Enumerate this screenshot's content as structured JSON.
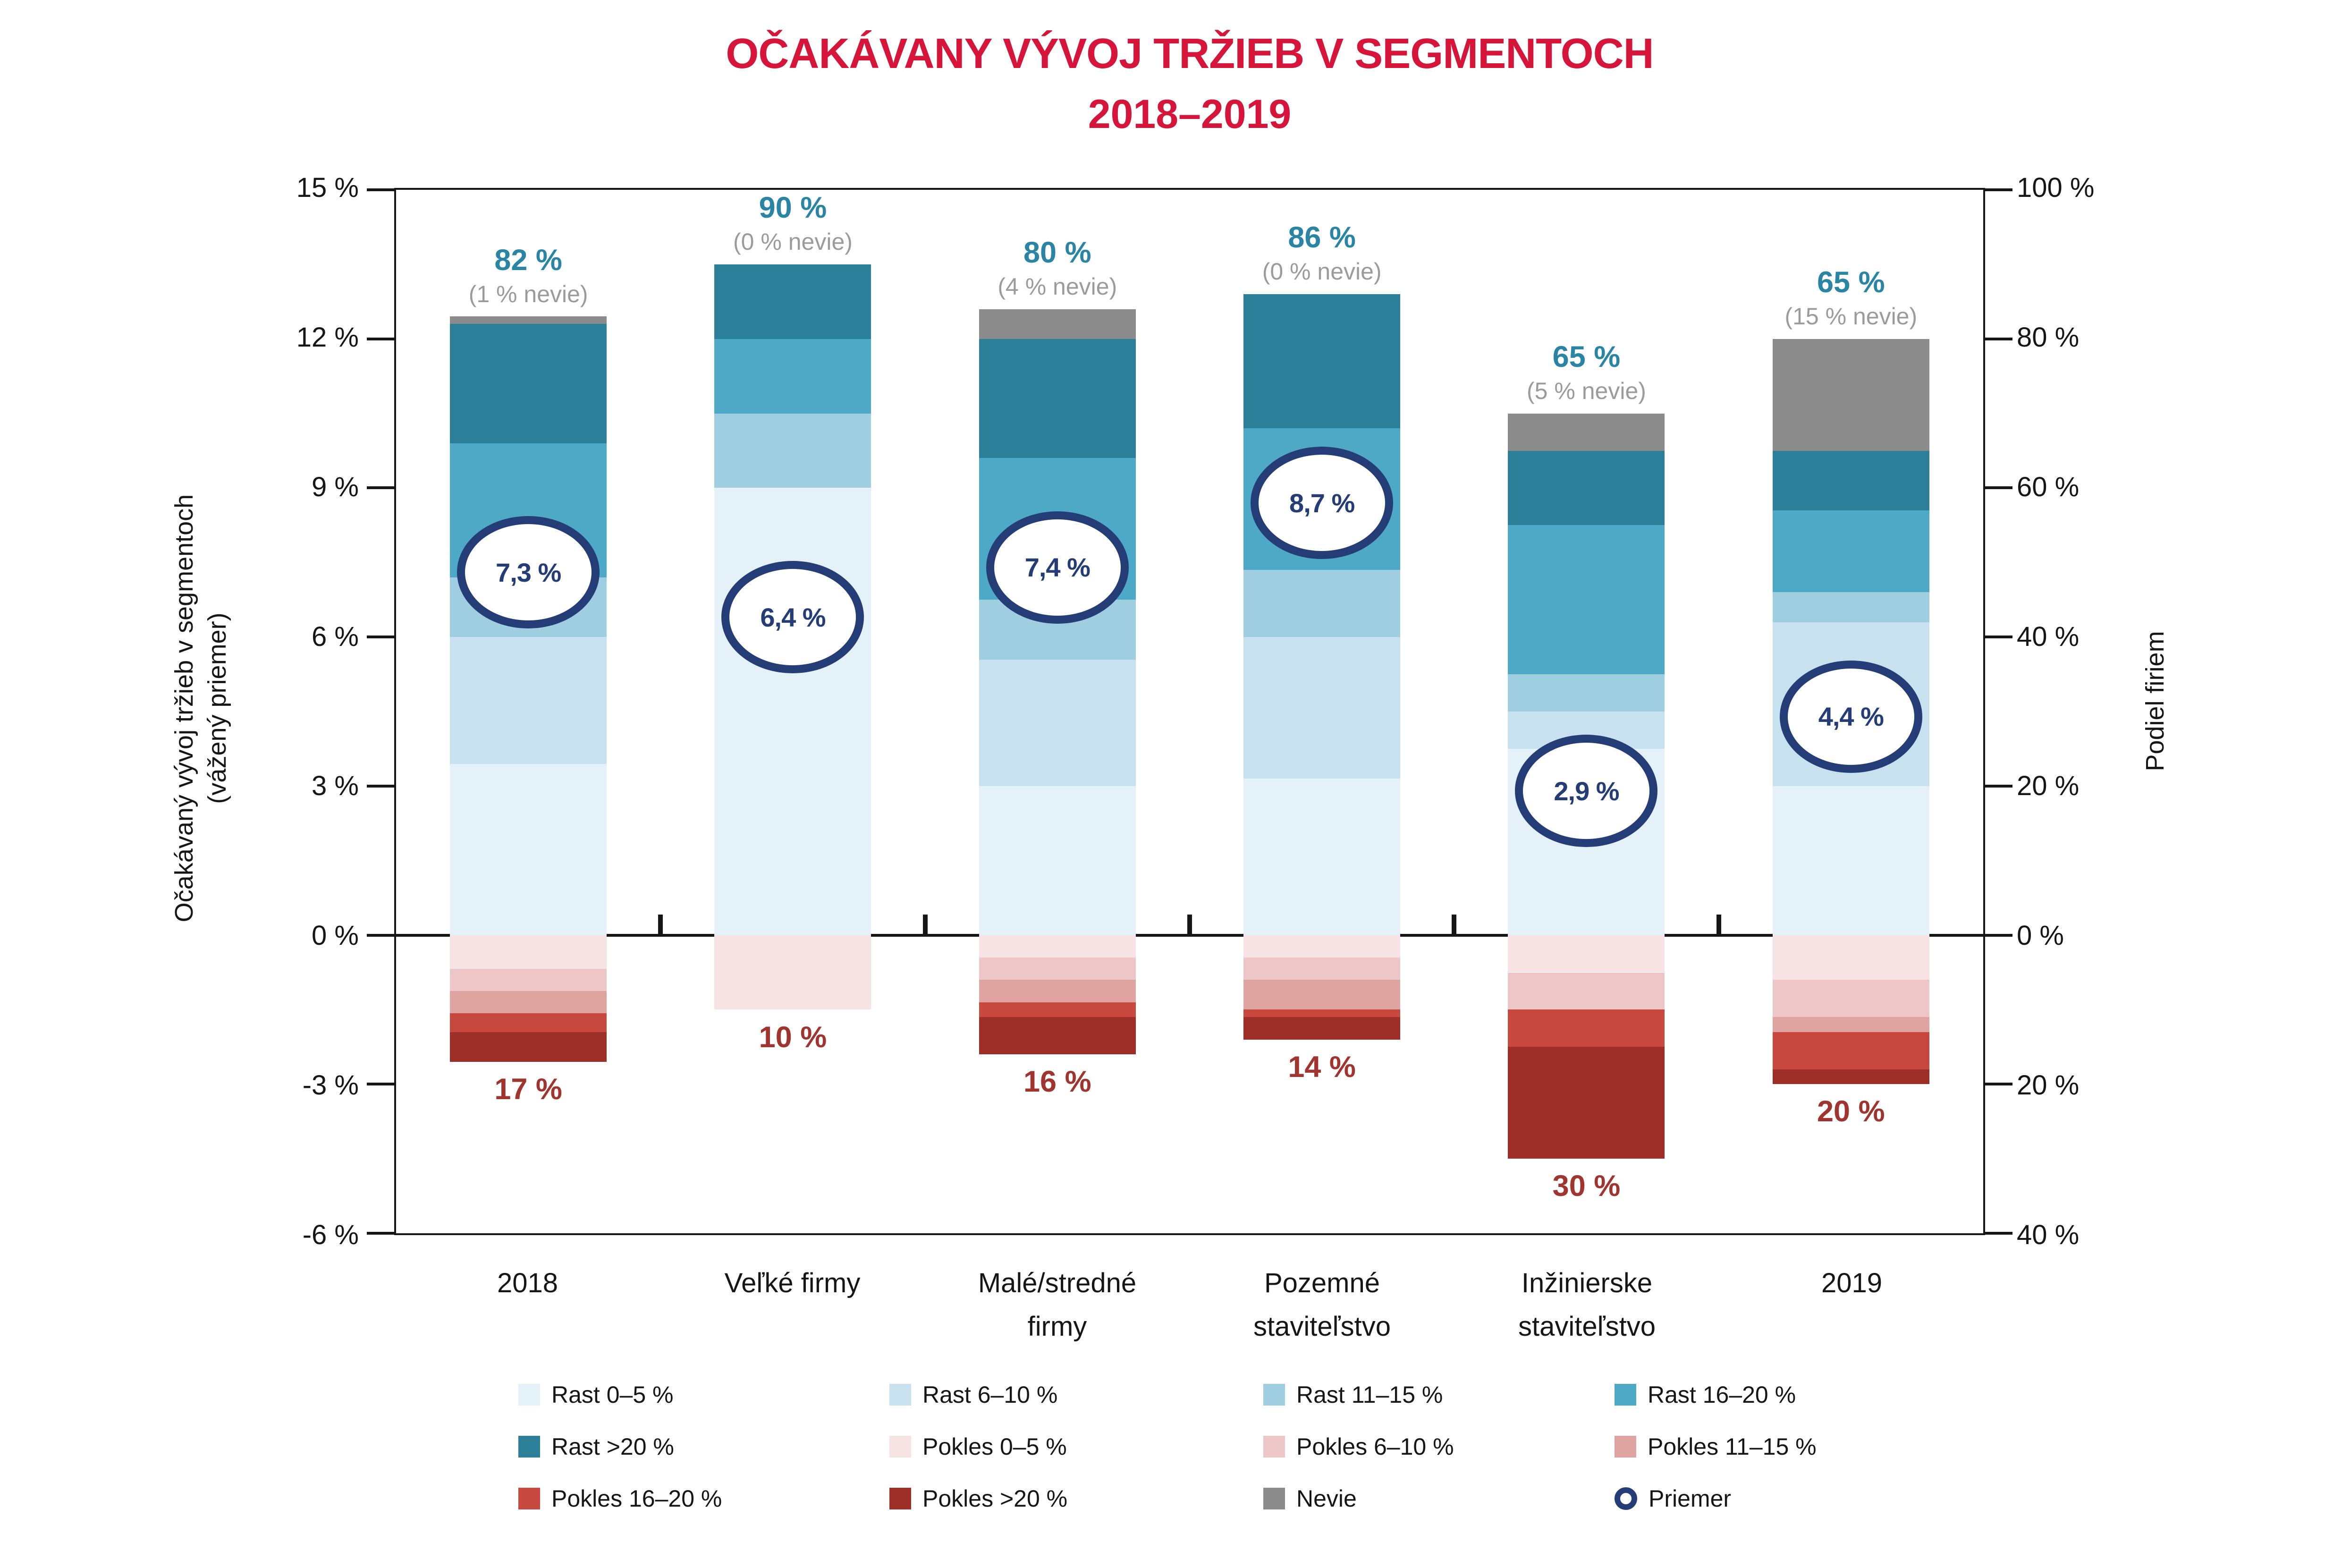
{
  "title": {
    "line1": "OČAKÁVANY VÝVOJ TRŽIEB V SEGMENTOCH",
    "line2": "2018–2019"
  },
  "axes": {
    "left_title_line1": "Očakávaný vývoj tržieb v segmentoch",
    "left_title_line2": "(vážený priemer)",
    "right_title": "Podiel firiem",
    "left_ticks": [
      "15 %",
      "12 %",
      "9 %",
      "6 %",
      "3 %",
      "0 %",
      "-3 %",
      "-6 %"
    ],
    "right_ticks": [
      "100 %",
      "80 %",
      "60 %",
      "40 %",
      "20 %",
      "0 %",
      "20 %",
      "40 %"
    ]
  },
  "colors": {
    "title_red": "#d5153a",
    "growth_label_blue": "#2a84a4",
    "nevie_note_gray": "#9b9b9b",
    "decline_label_red": "#a0342e",
    "average_navy": "#253d76",
    "axis_black": "#161616"
  },
  "chart_data": {
    "type": "bar",
    "stacked": true,
    "title": "OČAKÁVANY VÝVOJ TRŽIEB V SEGMENTOCH 2018–2019",
    "ylabel_left": "Očakávaný vývoj tržieb v segmentoch (vážený priemer)",
    "ylabel_right": "Podiel firiem",
    "axis": {
      "left_min": -6,
      "left_max": 15,
      "left_step": 3,
      "right_min": -40,
      "right_max": 100,
      "right_step": 20
    },
    "grid": false,
    "legend_position": "bottom",
    "categories": [
      "2018",
      "Veľké firmy",
      "Malé/stredné firmy",
      "Pozemné staviteľstvo",
      "Inžinierske staviteľstvo",
      "2019"
    ],
    "categories_lines": [
      [
        "2018"
      ],
      [
        "Veľké firmy"
      ],
      [
        "Malé/stredné",
        "firmy"
      ],
      [
        "Pozemné",
        "staviteľstvo"
      ],
      [
        "Inžinierske",
        "staviteľstvo"
      ],
      [
        "2019"
      ]
    ],
    "growth_series": [
      {
        "key": "rast-0-5",
        "name": "Rast 0–5 %",
        "color": "#e4f1f9",
        "values": [
          23,
          60,
          20,
          21,
          25,
          20
        ]
      },
      {
        "key": "rast-6-10",
        "name": "Rast 6–10 %",
        "color": "#c7e2ee",
        "values": [
          17,
          0,
          17,
          19,
          5,
          22
        ]
      },
      {
        "key": "rast-11-15",
        "name": "Rast 11–15 %",
        "color": "#9fcee1",
        "values": [
          8,
          10,
          8,
          9,
          5,
          4
        ]
      },
      {
        "key": "rast-16-20",
        "name": "Rast 16–20 %",
        "color": "#4ea9c6",
        "values": [
          18,
          10,
          19,
          19,
          20,
          11
        ]
      },
      {
        "key": "rast-20plus",
        "name": "Rast >20 %",
        "color": "#2c7f99",
        "values": [
          16,
          10,
          16,
          18,
          10,
          8
        ]
      }
    ],
    "nevie_series": {
      "key": "nevie",
      "name": "Nevie",
      "color": "#8b8b8b",
      "values": [
        1,
        0,
        4,
        0,
        5,
        15
      ]
    },
    "decline_series": [
      {
        "key": "pokles-0-5",
        "name": "Pokles 0–5 %",
        "color": "#f7e3e4",
        "values": [
          4.5,
          10,
          3,
          3,
          5,
          6
        ]
      },
      {
        "key": "pokles-6-10",
        "name": "Pokles 6–10 %",
        "color": "#edc7c7",
        "values": [
          3,
          0,
          3,
          3,
          5,
          5
        ]
      },
      {
        "key": "pokles-11-15",
        "name": "Pokles 11–15 %",
        "color": "#dfa3a0",
        "values": [
          3,
          0,
          3,
          4,
          0,
          2
        ]
      },
      {
        "key": "pokles-16-20",
        "name": "Pokles 16–20 %",
        "color": "#c7483f",
        "values": [
          2.5,
          0,
          2,
          1,
          5,
          5
        ]
      },
      {
        "key": "pokles-20plus",
        "name": "Pokles >20 %",
        "color": "#9d2f28",
        "values": [
          4,
          0,
          5,
          3,
          15,
          2
        ]
      }
    ],
    "average": {
      "name": "Priemer",
      "values": [
        7.3,
        6.4,
        7.4,
        8.7,
        2.9,
        4.4
      ],
      "display": [
        "7,3 %",
        "6,4 %",
        "7,4 %",
        "8,7 %",
        "2,9 %",
        "4,4 %"
      ]
    },
    "totals": {
      "growth_labels": [
        "82 %",
        "90 %",
        "80 %",
        "86 %",
        "65 %",
        "65 %"
      ],
      "nevie_labels": [
        "(1 % nevie)",
        "(0 % nevie)",
        "(4 % nevie)",
        "(0 % nevie)",
        "(5 % nevie)",
        "(15 % nevie)"
      ],
      "decline_labels": [
        "17 %",
        "10 %",
        "16 %",
        "14 %",
        "30 %",
        "20 %"
      ]
    }
  },
  "legend": {
    "items": [
      {
        "key": "rast-0-5",
        "label": "Rast 0–5 %",
        "color": "#e4f1f9",
        "type": "swatch"
      },
      {
        "key": "rast-6-10",
        "label": "Rast 6–10 %",
        "color": "#c7e2ee",
        "type": "swatch"
      },
      {
        "key": "rast-11-15",
        "label": "Rast 11–15 %",
        "color": "#9fcee1",
        "type": "swatch"
      },
      {
        "key": "rast-16-20",
        "label": "Rast 16–20 %",
        "color": "#4ea9c6",
        "type": "swatch"
      },
      {
        "key": "rast-20plus",
        "label": "Rast >20 %",
        "color": "#2c7f99",
        "type": "swatch"
      },
      {
        "key": "pokles-0-5",
        "label": "Pokles 0–5 %",
        "color": "#f7e3e4",
        "type": "swatch"
      },
      {
        "key": "pokles-6-10",
        "label": "Pokles 6–10 %",
        "color": "#edc7c7",
        "type": "swatch"
      },
      {
        "key": "pokles-11-15",
        "label": "Pokles 11–15 %",
        "color": "#dfa3a0",
        "type": "swatch"
      },
      {
        "key": "pokles-16-20",
        "label": "Pokles 16–20 %",
        "color": "#c7483f",
        "type": "swatch"
      },
      {
        "key": "pokles-20plus",
        "label": "Pokles >20 %",
        "color": "#9d2f28",
        "type": "swatch"
      },
      {
        "key": "nevie",
        "label": "Nevie",
        "color": "#8b8b8b",
        "type": "swatch"
      },
      {
        "key": "priemer",
        "label": "Priemer",
        "color": "#253d76",
        "type": "circle"
      }
    ]
  }
}
